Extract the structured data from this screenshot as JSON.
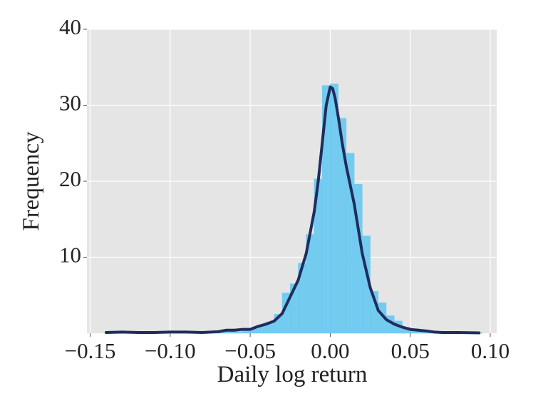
{
  "chart_data": {
    "type": "histogram",
    "xlabel": "Daily log return",
    "ylabel": "Frequency",
    "bins": [
      -0.14,
      -0.135,
      -0.13,
      -0.125,
      -0.12,
      -0.115,
      -0.11,
      -0.105,
      -0.1,
      -0.095,
      -0.09,
      -0.085,
      -0.08,
      -0.075,
      -0.07,
      -0.065,
      -0.06,
      -0.055,
      -0.05,
      -0.045,
      -0.04,
      -0.035,
      -0.03,
      -0.025,
      -0.02,
      -0.015,
      -0.01,
      -0.005,
      0,
      0.005,
      0.01,
      0.015,
      0.02,
      0.025,
      0.03,
      0.035,
      0.04,
      0.045,
      0.05,
      0.055,
      0.06,
      0.065,
      0.07,
      0.075,
      0.08,
      0.085,
      0.09,
      0.095
    ],
    "values": [
      0.1,
      0.05,
      0,
      0,
      0.05,
      0,
      0,
      0.05,
      0,
      0.05,
      0,
      0.05,
      0,
      0.1,
      0.2,
      0.3,
      0.2,
      0.4,
      0.6,
      1.0,
      1.5,
      2.5,
      5.3,
      6.5,
      9.2,
      13,
      20.3,
      32.6,
      32.8,
      28.3,
      23.7,
      19.6,
      12.8,
      5.5,
      4,
      2.3,
      1.6,
      0.8,
      0.6,
      0.4,
      0.3,
      0.2,
      0.1,
      0.05,
      0.05,
      0,
      0.05
    ],
    "color": "#6dc9ef",
    "kde": {
      "color": "#1f2d5c",
      "x": [
        -0.14,
        -0.13,
        -0.12,
        -0.11,
        -0.1,
        -0.09,
        -0.08,
        -0.07,
        -0.065,
        -0.06,
        -0.055,
        -0.05,
        -0.045,
        -0.04,
        -0.035,
        -0.03,
        -0.025,
        -0.02,
        -0.015,
        -0.01,
        -0.0075,
        -0.005,
        -0.0025,
        0,
        0.0015,
        0.003,
        0.005,
        0.0075,
        0.01,
        0.015,
        0.02,
        0.025,
        0.03,
        0.035,
        0.04,
        0.045,
        0.05,
        0.055,
        0.06,
        0.065,
        0.07,
        0.08,
        0.093
      ],
      "values": [
        0.1,
        0.15,
        0.1,
        0.1,
        0.15,
        0.15,
        0.1,
        0.2,
        0.4,
        0.4,
        0.5,
        0.5,
        0.9,
        1.2,
        1.6,
        2.6,
        4.8,
        7.0,
        10.5,
        16,
        20,
        25,
        30,
        32.4,
        32.2,
        31,
        28.5,
        25,
        22,
        17,
        10.5,
        6,
        3,
        1.8,
        1.2,
        0.8,
        0.5,
        0.4,
        0.3,
        0.15,
        0.1,
        0.1,
        0.05
      ]
    },
    "xlim": [
      -0.152,
      0.104
    ],
    "ylim": [
      0,
      40
    ],
    "xticks": [
      {
        "value": -0.15,
        "label": "−0.15"
      },
      {
        "value": -0.1,
        "label": "−0.10"
      },
      {
        "value": -0.05,
        "label": "−0.05"
      },
      {
        "value": 0,
        "label": "0.00"
      },
      {
        "value": 0.05,
        "label": "0.05"
      },
      {
        "value": 0.1,
        "label": "0.10"
      }
    ],
    "yticks": [
      10,
      20,
      30,
      40
    ],
    "grid": true
  }
}
